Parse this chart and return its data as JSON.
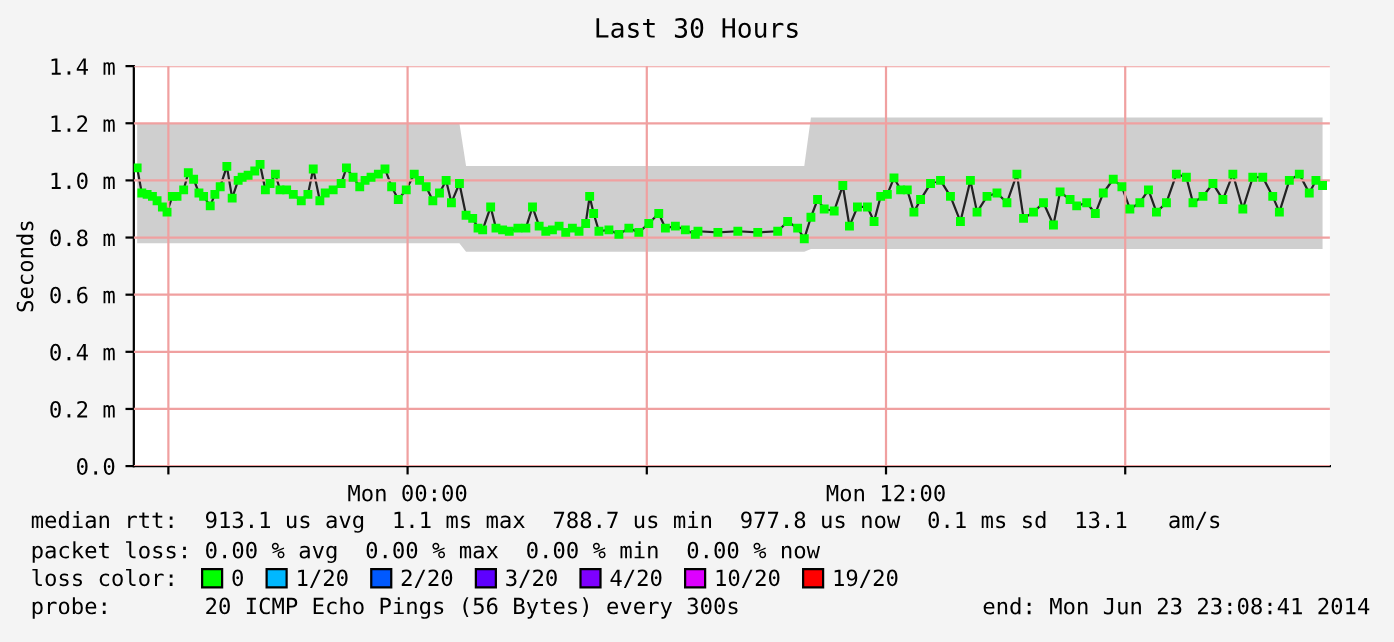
{
  "chart_data": {
    "type": "line",
    "title": "Last 30 Hours",
    "ylabel": "Seconds",
    "xlim": [
      "2014-06-22T17:08",
      "2014-06-23T23:08"
    ],
    "xticks": [
      {
        "value": "2014-06-22T18:00",
        "label": null
      },
      {
        "value": "2014-06-23T00:00",
        "label": "Mon 00:00"
      },
      {
        "value": "2014-06-23T06:00",
        "label": null
      },
      {
        "value": "2014-06-23T12:00",
        "label": "Mon 12:00"
      },
      {
        "value": "2014-06-23T18:00",
        "label": null
      }
    ],
    "ylim": [
      0,
      1.4
    ],
    "yticks": [
      {
        "value": 0,
        "label": "0.0"
      },
      {
        "value": 0.2,
        "label": "0.2 m"
      },
      {
        "value": 0.4,
        "label": "0.4 m"
      },
      {
        "value": 0.6,
        "label": "0.6 m"
      },
      {
        "value": 0.8,
        "label": "0.8 m"
      },
      {
        "value": 1.0,
        "label": "1.0 m"
      },
      {
        "value": 1.2,
        "label": "1.2 m"
      },
      {
        "value": 1.4,
        "label": "1.4 m"
      }
    ],
    "grid": true,
    "legend": "bottom",
    "legend_title": "loss color:",
    "marker": "square",
    "line_style": "solid",
    "series": [
      {
        "name": "0",
        "color": "#00ff00",
        "x": [
          "2014-06-22T17:13",
          "2014-06-22T17:20",
          "2014-06-22T17:28",
          "2014-06-22T17:36",
          "2014-06-22T17:43",
          "2014-06-22T17:51",
          "2014-06-22T17:58",
          "2014-06-22T18:06",
          "2014-06-22T18:13",
          "2014-06-22T18:23",
          "2014-06-22T18:30",
          "2014-06-22T18:38",
          "2014-06-22T18:46",
          "2014-06-22T18:53",
          "2014-06-22T19:03",
          "2014-06-22T19:10",
          "2014-06-22T19:18",
          "2014-06-22T19:28",
          "2014-06-22T19:36",
          "2014-06-22T19:45",
          "2014-06-22T19:51",
          "2014-06-22T20:00",
          "2014-06-22T20:10",
          "2014-06-22T20:18",
          "2014-06-22T20:26",
          "2014-06-22T20:33",
          "2014-06-22T20:41",
          "2014-06-22T20:48",
          "2014-06-22T20:58",
          "2014-06-22T21:08",
          "2014-06-22T21:20",
          "2014-06-22T21:30",
          "2014-06-22T21:38",
          "2014-06-22T21:48",
          "2014-06-22T21:56",
          "2014-06-22T22:08",
          "2014-06-22T22:20",
          "2014-06-22T22:28",
          "2014-06-22T22:38",
          "2014-06-22T22:48",
          "2014-06-22T22:56",
          "2014-06-22T23:05",
          "2014-06-22T23:16",
          "2014-06-22T23:26",
          "2014-06-22T23:36",
          "2014-06-22T23:46",
          "2014-06-22T23:58",
          "2014-06-23T00:10",
          "2014-06-23T00:18",
          "2014-06-23T00:28",
          "2014-06-23T00:38",
          "2014-06-23T00:48",
          "2014-06-23T00:58",
          "2014-06-23T01:06",
          "2014-06-23T01:18",
          "2014-06-23T01:28",
          "2014-06-23T01:38",
          "2014-06-23T01:46",
          "2014-06-23T01:53",
          "2014-06-23T02:05",
          "2014-06-23T02:13",
          "2014-06-23T02:23",
          "2014-06-23T02:33",
          "2014-06-23T02:46",
          "2014-06-23T02:58",
          "2014-06-23T03:08",
          "2014-06-23T03:18",
          "2014-06-23T03:28",
          "2014-06-23T03:38",
          "2014-06-23T03:48",
          "2014-06-23T03:58",
          "2014-06-23T04:08",
          "2014-06-23T04:18",
          "2014-06-23T04:28",
          "2014-06-23T04:34",
          "2014-06-23T04:40",
          "2014-06-23T04:48",
          "2014-06-23T05:03",
          "2014-06-23T05:18",
          "2014-06-23T05:33",
          "2014-06-23T05:48",
          "2014-06-23T06:03",
          "2014-06-23T06:18",
          "2014-06-23T06:28",
          "2014-06-23T06:43",
          "2014-06-23T06:58",
          "2014-06-23T07:13",
          "2014-06-23T07:17",
          "2014-06-23T07:47",
          "2014-06-23T08:17",
          "2014-06-23T08:47",
          "2014-06-23T09:17",
          "2014-06-23T09:32",
          "2014-06-23T09:47",
          "2014-06-23T09:57",
          "2014-06-23T10:07",
          "2014-06-23T10:17",
          "2014-06-23T10:27",
          "2014-06-23T10:42",
          "2014-06-23T10:55",
          "2014-06-23T11:05",
          "2014-06-23T11:17",
          "2014-06-23T11:32",
          "2014-06-23T11:42",
          "2014-06-23T11:52",
          "2014-06-23T12:02",
          "2014-06-23T12:12",
          "2014-06-23T12:22",
          "2014-06-23T12:32",
          "2014-06-23T12:42",
          "2014-06-23T12:52",
          "2014-06-23T13:07",
          "2014-06-23T13:22",
          "2014-06-23T13:37",
          "2014-06-23T13:52",
          "2014-06-23T14:07",
          "2014-06-23T14:17",
          "2014-06-23T14:32",
          "2014-06-23T14:47",
          "2014-06-23T15:02",
          "2014-06-23T15:17",
          "2014-06-23T15:27",
          "2014-06-23T15:42",
          "2014-06-23T15:57",
          "2014-06-23T16:12",
          "2014-06-23T16:22",
          "2014-06-23T16:37",
          "2014-06-23T16:47",
          "2014-06-23T17:02",
          "2014-06-23T17:15",
          "2014-06-23T17:27",
          "2014-06-23T17:42",
          "2014-06-23T17:55",
          "2014-06-23T18:07",
          "2014-06-23T18:22",
          "2014-06-23T18:35",
          "2014-06-23T18:47",
          "2014-06-23T19:02",
          "2014-06-23T19:17",
          "2014-06-23T19:32",
          "2014-06-23T19:42",
          "2014-06-23T19:57",
          "2014-06-23T20:12",
          "2014-06-23T20:27",
          "2014-06-23T20:42",
          "2014-06-23T20:57",
          "2014-06-23T21:12",
          "2014-06-23T21:27",
          "2014-06-23T21:42",
          "2014-06-23T21:52",
          "2014-06-23T22:07",
          "2014-06-23T22:22",
          "2014-06-23T22:37",
          "2014-06-23T22:47",
          "2014-06-23T22:57"
        ],
        "values": [
          1.044,
          0.956,
          0.951,
          0.944,
          0.929,
          0.907,
          0.889,
          0.944,
          0.944,
          0.967,
          1.027,
          1.004,
          0.956,
          0.944,
          0.911,
          0.951,
          0.978,
          1.049,
          0.938,
          1.0,
          1.011,
          1.018,
          1.033,
          1.056,
          0.967,
          0.989,
          1.022,
          0.967,
          0.967,
          0.951,
          0.929,
          0.951,
          1.04,
          0.929,
          0.956,
          0.967,
          0.989,
          1.044,
          1.011,
          0.978,
          1.0,
          1.011,
          1.022,
          1.04,
          0.978,
          0.933,
          0.967,
          1.022,
          1.0,
          0.978,
          0.929,
          0.956,
          1.0,
          0.922,
          0.989,
          0.878,
          0.867,
          0.833,
          0.827,
          0.907,
          0.833,
          0.827,
          0.822,
          0.833,
          0.833,
          0.907,
          0.84,
          0.822,
          0.827,
          0.84,
          0.818,
          0.833,
          0.822,
          0.849,
          0.944,
          0.884,
          0.822,
          0.827,
          0.811,
          0.833,
          0.818,
          0.849,
          0.884,
          0.833,
          0.84,
          0.827,
          0.811,
          0.822,
          0.818,
          0.822,
          0.818,
          0.822,
          0.856,
          0.833,
          0.796,
          0.871,
          0.933,
          0.9,
          0.893,
          0.982,
          0.84,
          0.907,
          0.907,
          0.856,
          0.944,
          0.951,
          1.009,
          0.967,
          0.967,
          0.889,
          0.933,
          0.989,
          1.0,
          0.944,
          0.856,
          1.0,
          0.889,
          0.944,
          0.956,
          0.922,
          1.022,
          0.867,
          0.889,
          0.922,
          0.844,
          0.96,
          0.933,
          0.911,
          0.922,
          0.884,
          0.956,
          1.004,
          0.978,
          0.9,
          0.922,
          0.967,
          0.889,
          0.922,
          1.022,
          1.011,
          0.922,
          0.944,
          0.989,
          0.933,
          1.022,
          0.9,
          1.011,
          1.011,
          0.944,
          0.889,
          1.0,
          1.022,
          0.956,
          1.0,
          0.982
        ],
        "lower": [
          0.78,
          0.78,
          0.78,
          0.78,
          0.78,
          0.78,
          0.78,
          0.78,
          0.78,
          0.78,
          0.78,
          0.78,
          0.78,
          0.78,
          0.78,
          0.78,
          0.78,
          0.78,
          0.78,
          0.78,
          0.78,
          0.78,
          0.78,
          0.78,
          0.78,
          0.78,
          0.78,
          0.78,
          0.78,
          0.78,
          0.78,
          0.78,
          0.78,
          0.78,
          0.78,
          0.78,
          0.78,
          0.78,
          0.78,
          0.78,
          0.78,
          0.78,
          0.78,
          0.78,
          0.78,
          0.78,
          0.78,
          0.78,
          0.78,
          0.78,
          0.78,
          0.78,
          0.78,
          0.78,
          0.78,
          0.75,
          0.75,
          0.75,
          0.75,
          0.75,
          0.75,
          0.75,
          0.75,
          0.75,
          0.75,
          0.75,
          0.75,
          0.75,
          0.75,
          0.75,
          0.75,
          0.75,
          0.75,
          0.75,
          0.75,
          0.75,
          0.75,
          0.75,
          0.75,
          0.75,
          0.75,
          0.75,
          0.75,
          0.75,
          0.75,
          0.75,
          0.75,
          0.75,
          0.75,
          0.75,
          0.75,
          0.75,
          0.75,
          0.75,
          0.75,
          0.76,
          0.76,
          0.76,
          0.76,
          0.76,
          0.76,
          0.76,
          0.76,
          0.76,
          0.76,
          0.76,
          0.76,
          0.76,
          0.76,
          0.76,
          0.76,
          0.76,
          0.76,
          0.76,
          0.76,
          0.76,
          0.76,
          0.76,
          0.76,
          0.76,
          0.76,
          0.76,
          0.76,
          0.76,
          0.76,
          0.76,
          0.76,
          0.76,
          0.76,
          0.76,
          0.76,
          0.76,
          0.76,
          0.76,
          0.76,
          0.76,
          0.76,
          0.76,
          0.76,
          0.76,
          0.76,
          0.76,
          0.76,
          0.76,
          0.76,
          0.76,
          0.76,
          0.76,
          0.76,
          0.76,
          0.76,
          0.76,
          0.76,
          0.76,
          0.76
        ],
        "upper": [
          1.2,
          1.2,
          1.2,
          1.2,
          1.2,
          1.2,
          1.2,
          1.2,
          1.2,
          1.2,
          1.2,
          1.2,
          1.2,
          1.2,
          1.2,
          1.2,
          1.2,
          1.2,
          1.2,
          1.2,
          1.2,
          1.2,
          1.2,
          1.2,
          1.2,
          1.2,
          1.2,
          1.2,
          1.2,
          1.2,
          1.2,
          1.2,
          1.2,
          1.2,
          1.2,
          1.2,
          1.2,
          1.2,
          1.2,
          1.2,
          1.2,
          1.2,
          1.2,
          1.2,
          1.2,
          1.2,
          1.2,
          1.2,
          1.2,
          1.2,
          1.2,
          1.2,
          1.2,
          1.2,
          1.2,
          1.05,
          1.05,
          1.05,
          1.05,
          1.05,
          1.05,
          1.05,
          1.05,
          1.05,
          1.05,
          1.05,
          1.05,
          1.05,
          1.05,
          1.05,
          1.05,
          1.05,
          1.05,
          1.05,
          1.05,
          1.05,
          1.05,
          1.05,
          1.05,
          1.05,
          1.05,
          1.05,
          1.05,
          1.05,
          1.05,
          1.05,
          1.05,
          1.05,
          1.05,
          1.05,
          1.05,
          1.05,
          1.05,
          1.05,
          1.05,
          1.22,
          1.22,
          1.22,
          1.22,
          1.22,
          1.22,
          1.22,
          1.22,
          1.22,
          1.22,
          1.22,
          1.22,
          1.22,
          1.22,
          1.22,
          1.22,
          1.22,
          1.22,
          1.22,
          1.22,
          1.22,
          1.22,
          1.22,
          1.22,
          1.22,
          1.22,
          1.22,
          1.22,
          1.22,
          1.22,
          1.22,
          1.22,
          1.22,
          1.22,
          1.22,
          1.22,
          1.22,
          1.22,
          1.22,
          1.22,
          1.22,
          1.22,
          1.22,
          1.22,
          1.22,
          1.22,
          1.22,
          1.22,
          1.22,
          1.22,
          1.22,
          1.22,
          1.22,
          1.22,
          1.22,
          1.22,
          1.22,
          1.22,
          1.22,
          1.22
        ]
      },
      {
        "name": "1/20",
        "color": "#00b8ff"
      },
      {
        "name": "2/20",
        "color": "#0059ff"
      },
      {
        "name": "3/20",
        "color": "#5e00ff"
      },
      {
        "name": "4/20",
        "color": "#7e00ff"
      },
      {
        "name": "10/20",
        "color": "#dd00ff"
      },
      {
        "name": "19/20",
        "color": "#ff0000"
      }
    ],
    "annotations": [
      "median rtt:  913.1 us avg  1.1 ms max  788.7 us min  977.8 us now  0.1 ms sd  13.1   am/s",
      "packet loss: 0.00 % avg  0.00 % max  0.00 % min  0.00 % now",
      "probe:       20 ICMP Echo Pings (56 Bytes) every 300s",
      "end: Mon Jun 23 23:08:41 2014"
    ]
  }
}
